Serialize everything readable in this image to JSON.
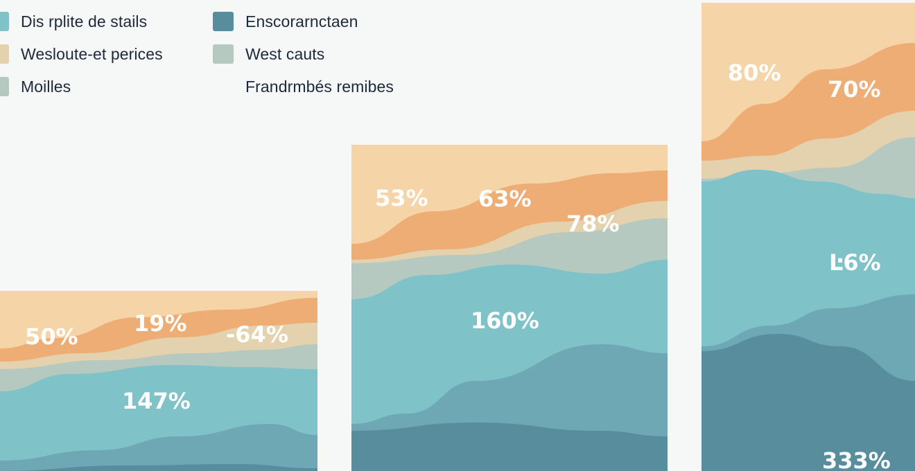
{
  "colors": {
    "background": "#f6f7f7",
    "panel": "#fbfbfb",
    "sand": "#f5d5a8",
    "orange": "#eead74",
    "beige": "#e3d2ad",
    "sage": "#b5c9c0",
    "teal": "#7fc2c8",
    "steel": "#6ea8b4",
    "slate": "#578d9d"
  },
  "legend": [
    {
      "label": "Dis rplite de stails",
      "color": "#7fc2c8"
    },
    {
      "label": "Wesloute-et perices",
      "color": "#e3d2ad"
    },
    {
      "label": "Moilles",
      "color": "#b5c9c0"
    },
    {
      "label": "Enscorarnctaen",
      "color": "#578d9d"
    },
    {
      "label": "West cauts",
      "color": "#b5c9c0"
    },
    {
      "label": "Frandrmbés remibes",
      "color": ""
    }
  ],
  "chart_data": {
    "type": "area",
    "title": "",
    "xlabel": "",
    "ylabel": "",
    "panels": [
      {
        "labels": [
          {
            "text": "50%",
            "layer": "orange"
          },
          {
            "text": "19%",
            "layer": "orange"
          },
          {
            "text": "-64%",
            "layer": "orange"
          },
          {
            "text": "147%",
            "layer": "teal"
          }
        ]
      },
      {
        "labels": [
          {
            "text": "53%",
            "layer": "sand"
          },
          {
            "text": "63%",
            "layer": "orange"
          },
          {
            "text": "78%",
            "layer": "sage"
          },
          {
            "text": "160%",
            "layer": "teal"
          }
        ]
      },
      {
        "labels": [
          {
            "text": "80%",
            "layer": "sand"
          },
          {
            "text": "70%",
            "layer": "orange"
          },
          {
            "text": "Ŀ6%",
            "layer": "teal"
          },
          {
            "text": "333%",
            "layer": "slate"
          }
        ]
      }
    ]
  }
}
